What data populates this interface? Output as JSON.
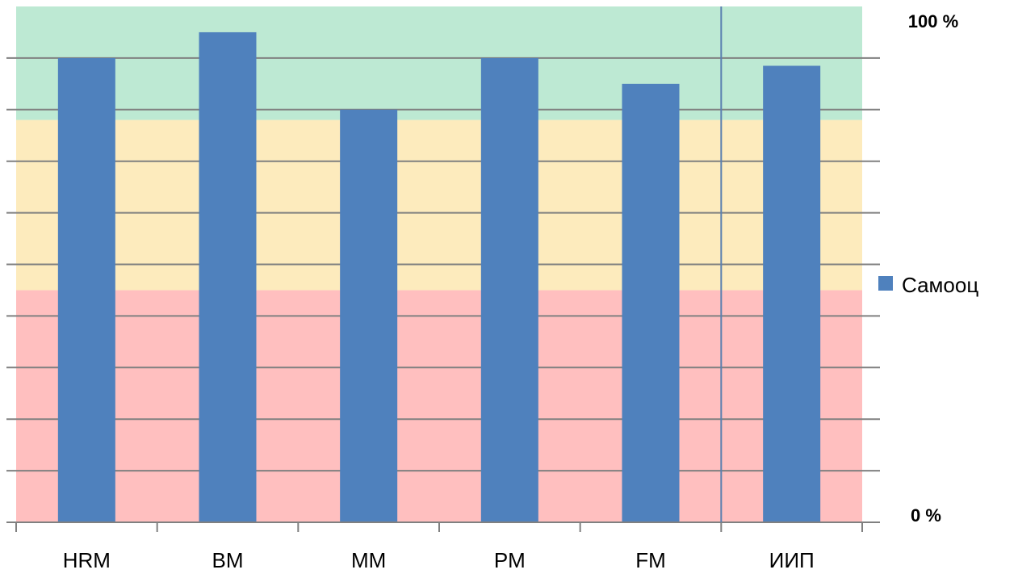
{
  "chart_data": {
    "type": "bar",
    "categories": [
      "HRM",
      "BM",
      "MM",
      "PM",
      "FM",
      "ИИП"
    ],
    "series": [
      {
        "name": "Самооц",
        "values": [
          90,
          95,
          80,
          90,
          85,
          88.5
        ]
      }
    ],
    "ylim": [
      0,
      100
    ],
    "grid": true,
    "legend": "right",
    "bands": [
      {
        "from": 0,
        "to": 45,
        "color": "#ffbfbf"
      },
      {
        "from": 45,
        "to": 78,
        "color": "#fdebbd"
      },
      {
        "from": 78,
        "to": 100,
        "color": "#bde9d3"
      }
    ],
    "y_top_label": "100 %",
    "y_bottom_label": "0 %",
    "colors": {
      "bar": "#4f81bd",
      "grid": "#808080",
      "axis": "#808080"
    }
  }
}
